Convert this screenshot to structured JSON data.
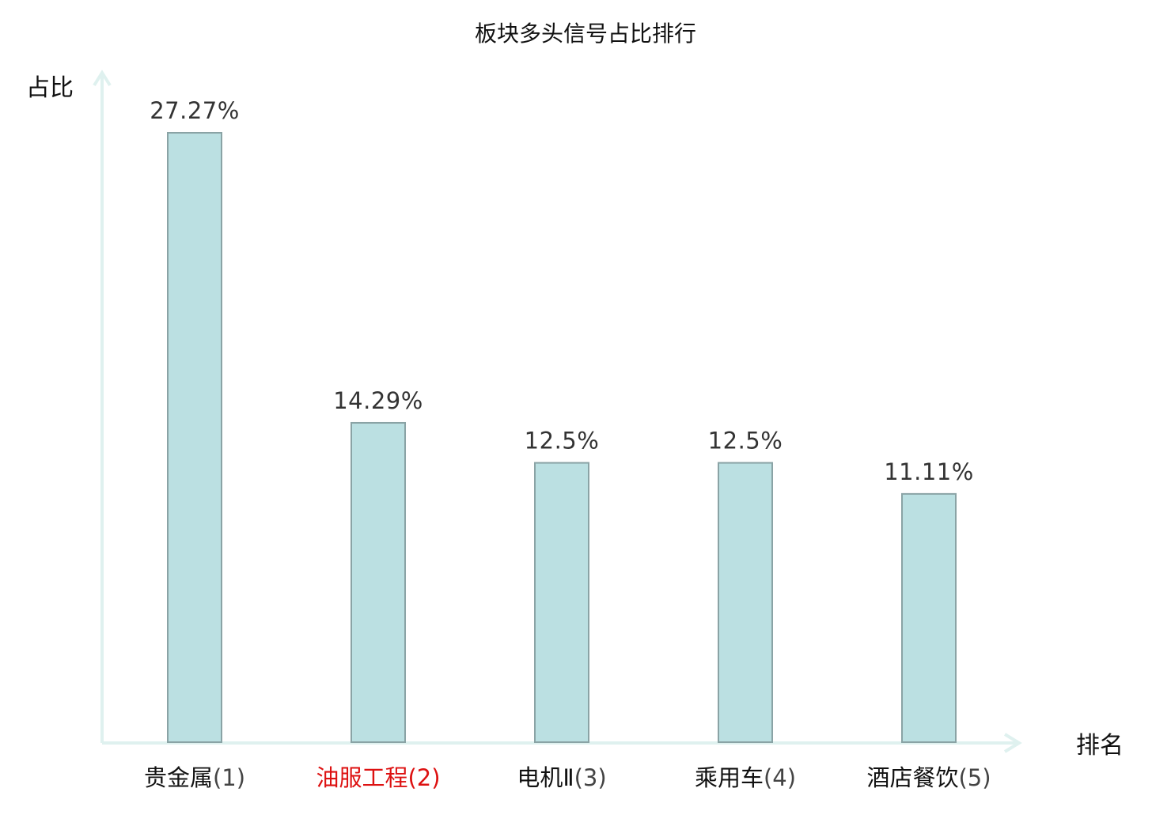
{
  "chart_data": {
    "type": "bar",
    "title": "板块多头信号占比排行",
    "xlabel": "排名",
    "ylabel": "占比",
    "categories": [
      "贵金属",
      "油服工程",
      "电机Ⅱ",
      "乘用车",
      "酒店餐饮"
    ],
    "ranks": [
      "(1)",
      "(2)",
      "(3)",
      "(4)",
      "(5)"
    ],
    "values": [
      27.27,
      14.29,
      12.5,
      12.5,
      11.11
    ],
    "value_labels": [
      "27.27%",
      "14.29%",
      "12.5%",
      "12.5%",
      "11.11%"
    ],
    "highlight_index": 1,
    "ylim": [
      0,
      28
    ],
    "grid": false,
    "colors": {
      "bar_fill": "#bbe0e2",
      "bar_stroke": "#8aa3a5",
      "axis": "#dff1ef",
      "highlight_text": "#dd1111"
    }
  }
}
